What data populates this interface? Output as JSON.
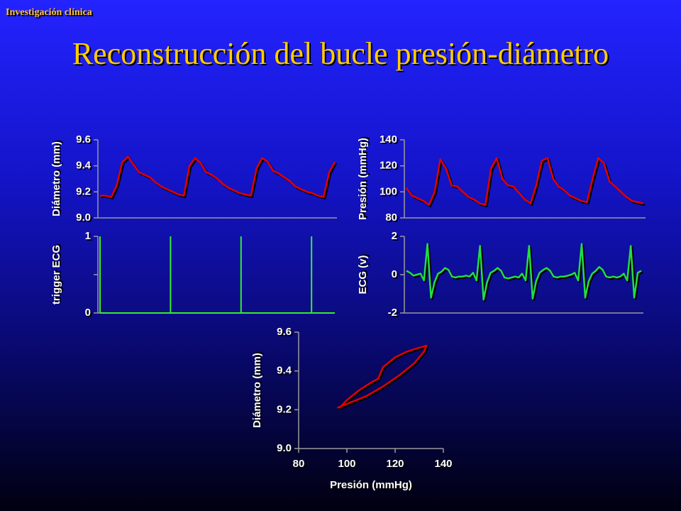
{
  "header": {
    "section": "Investigación clínica",
    "title": "Reconstrucción del bucle presión-diámetro"
  },
  "chart_data": [
    {
      "type": "line",
      "ylabel": "Diámetro (mm)",
      "color": "#e00000",
      "ylim": [
        9.0,
        9.6
      ],
      "yticks": [
        {
          "value": 9.0,
          "label": "9.0"
        },
        9.2,
        9.4,
        9.6
      ],
      "values": [
        9.17,
        9.17,
        9.16,
        9.25,
        9.43,
        9.47,
        9.41,
        9.35,
        9.33,
        9.31,
        9.27,
        9.24,
        9.22,
        9.2,
        9.18,
        9.17,
        9.4,
        9.46,
        9.42,
        9.35,
        9.33,
        9.3,
        9.26,
        9.23,
        9.21,
        9.19,
        9.18,
        9.17,
        9.38,
        9.46,
        9.43,
        9.36,
        9.34,
        9.31,
        9.28,
        9.24,
        9.22,
        9.2,
        9.19,
        9.17,
        9.16,
        9.35,
        9.43
      ]
    },
    {
      "type": "line",
      "ylabel": "Presión (mmHg)",
      "color": "#e00000",
      "ylim": [
        80,
        140
      ],
      "yticks": [
        80,
        100,
        120,
        140
      ],
      "values": [
        103,
        97,
        95,
        93,
        90,
        100,
        125,
        118,
        105,
        104,
        100,
        96,
        94,
        91,
        90,
        118,
        126,
        110,
        105,
        104,
        99,
        94,
        91,
        105,
        124,
        126,
        110,
        104,
        101,
        97,
        95,
        93,
        92,
        110,
        126,
        122,
        108,
        104,
        100,
        96,
        93,
        92,
        91
      ]
    },
    {
      "type": "stem",
      "ylabel": "trigger ECG",
      "color": "#33ee33",
      "ylim": [
        0,
        1
      ],
      "yticks": [
        0,
        1
      ],
      "yminorticks": [
        0.5
      ],
      "values": [
        1,
        0,
        0,
        0,
        0,
        0,
        0,
        0,
        0,
        0,
        1,
        0,
        0,
        0,
        0,
        0,
        0,
        0,
        0,
        0,
        1,
        0,
        0,
        0,
        0,
        0,
        0,
        0,
        0,
        0,
        1,
        0,
        0,
        0
      ]
    },
    {
      "type": "line",
      "ylabel": "ECG (v)",
      "color": "#22dd44",
      "ylim": [
        -2,
        2
      ],
      "yticks": [
        -2,
        0,
        2
      ],
      "values": [
        0.2,
        0.1,
        -0.05,
        0.0,
        0.05,
        -0.3,
        1.6,
        -1.2,
        -0.4,
        0.05,
        0.15,
        0.35,
        0.25,
        -0.1,
        -0.15,
        -0.1,
        -0.1,
        -0.05,
        -0.1,
        0.1,
        -0.3,
        1.5,
        -1.3,
        -0.4,
        0.1,
        0.2,
        0.35,
        0.2,
        -0.15,
        -0.2,
        -0.15,
        -0.1,
        -0.15,
        0.05,
        -0.3,
        1.5,
        -1.25,
        -0.35,
        0.1,
        0.25,
        0.35,
        0.2,
        -0.1,
        -0.15,
        -0.1,
        -0.1,
        -0.05,
        0.0,
        0.1,
        -0.3,
        1.6,
        -1.2,
        -0.35,
        0.05,
        0.2,
        0.4,
        0.25,
        -0.1,
        -0.15,
        -0.1,
        -0.15,
        -0.1,
        0.05,
        -0.3,
        1.5,
        -1.2,
        0.1,
        0.2
      ]
    },
    {
      "type": "loop",
      "xlabel": "Presión (mmHg)",
      "ylabel": "Diámetro (mm)",
      "color": "#e00000",
      "xlim": [
        80,
        140
      ],
      "xticks": [
        80,
        100,
        120,
        140
      ],
      "ylim": [
        9.0,
        9.6
      ],
      "yticks": [
        {
          "value": 9.0,
          "label": "9.0"
        },
        9.2,
        9.4,
        9.6
      ],
      "x": [
        97,
        100,
        105,
        110,
        113,
        115,
        120,
        125,
        130,
        133,
        132,
        128,
        122,
        115,
        108,
        102,
        98,
        96
      ],
      "values": [
        9.21,
        9.25,
        9.3,
        9.34,
        9.36,
        9.42,
        9.47,
        9.5,
        9.52,
        9.53,
        9.5,
        9.44,
        9.38,
        9.32,
        9.27,
        9.24,
        9.22,
        9.21
      ]
    }
  ]
}
